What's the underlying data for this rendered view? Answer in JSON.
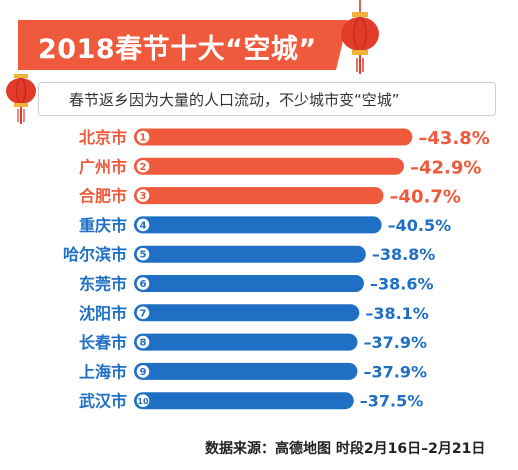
{
  "title": "2018春节十大“空城”",
  "subtitle": "春节返乡因为大量的人口流动，不少城市变“空城”",
  "source": "数据来源：高德地图   时段2月16日–2月21日",
  "colors": {
    "top3": "#ef5a3c",
    "rest": "#1f6fc4",
    "title_bg": "#ef5a3c"
  },
  "icons": [
    "lantern-icon"
  ],
  "chart_data": {
    "type": "bar",
    "orientation": "horizontal",
    "categories": [
      "北京市",
      "广州市",
      "合肥市",
      "重庆市",
      "哈尔滨市",
      "东莞市",
      "沈阳市",
      "长春市",
      "上海市",
      "武汉市"
    ],
    "ranks": [
      "1",
      "2",
      "3",
      "4",
      "5",
      "6",
      "7",
      "8",
      "9",
      "10"
    ],
    "values": [
      -43.8,
      -42.9,
      -40.7,
      -40.5,
      -38.8,
      -38.6,
      -38.1,
      -37.9,
      -37.9,
      -37.5
    ],
    "value_labels": [
      "–43.8%",
      "–42.9%",
      "–40.7%",
      "–40.5%",
      "–38.8%",
      "–38.6%",
      "–38.1%",
      "–37.9%",
      "–37.9%",
      "–37.5%"
    ],
    "unit": "%",
    "highlight_count": 3
  }
}
